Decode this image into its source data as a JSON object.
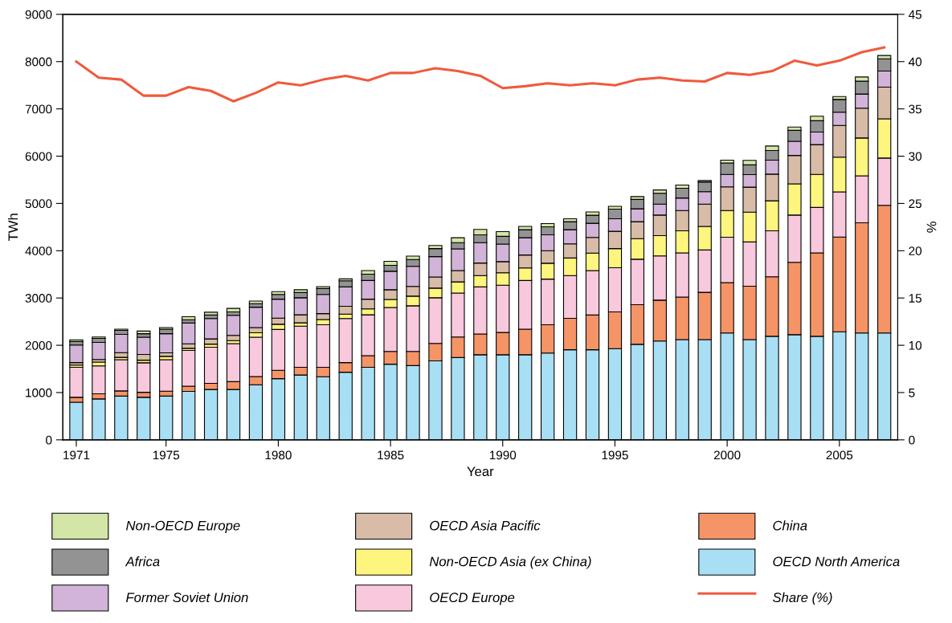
{
  "chart_data": {
    "type": "bar",
    "stacked": true,
    "xlabel": "Year",
    "ylabel": "TWh",
    "y2label": "%",
    "x": [
      1971,
      1972,
      1973,
      1974,
      1975,
      1976,
      1977,
      1978,
      1979,
      1980,
      1981,
      1982,
      1983,
      1984,
      1985,
      1986,
      1987,
      1988,
      1989,
      1990,
      1991,
      1992,
      1993,
      1994,
      1995,
      1996,
      1997,
      1998,
      1999,
      2000,
      2001,
      2002,
      2003,
      2004,
      2005,
      2006,
      2007
    ],
    "xlim": [
      1970.4,
      2007.6
    ],
    "xticks": [
      1971,
      1975,
      1980,
      1985,
      1990,
      1995,
      2000,
      2005
    ],
    "ylim": [
      0,
      9000
    ],
    "yticks": [
      0,
      1000,
      2000,
      3000,
      4000,
      5000,
      6000,
      7000,
      8000,
      9000
    ],
    "y2lim": [
      0,
      45
    ],
    "y2ticks": [
      0,
      5,
      10,
      15,
      20,
      25,
      30,
      35,
      40,
      45
    ],
    "grid": false,
    "legend": "bottom",
    "series": [
      {
        "name": "OECD North America",
        "color": "#a8dff5",
        "values": [
          795,
          865,
          925,
          900,
          925,
          1025,
          1065,
          1065,
          1165,
          1295,
          1370,
          1335,
          1430,
          1535,
          1600,
          1570,
          1670,
          1740,
          1800,
          1800,
          1800,
          1835,
          1905,
          1905,
          1930,
          2020,
          2090,
          2120,
          2120,
          2260,
          2120,
          2190,
          2225,
          2190,
          2285,
          2260,
          2260
        ]
      },
      {
        "name": "China",
        "color": "#f59466",
        "values": [
          105,
          110,
          110,
          105,
          105,
          110,
          130,
          165,
          175,
          175,
          165,
          200,
          205,
          245,
          270,
          300,
          370,
          435,
          440,
          470,
          540,
          600,
          665,
          735,
          775,
          840,
          865,
          900,
          1000,
          1065,
          1130,
          1260,
          1530,
          1765,
          2005,
          2330,
          2700
        ]
      },
      {
        "name": "OECD Europe",
        "color": "#f8c8dd",
        "values": [
          635,
          590,
          660,
          625,
          665,
          755,
          765,
          805,
          830,
          865,
          870,
          900,
          930,
          865,
          930,
          965,
          965,
          930,
          995,
          1000,
          1030,
          965,
          905,
          940,
          935,
          960,
          935,
          935,
          895,
          960,
          935,
          970,
          1000,
          960,
          955,
          995,
          1000
        ]
      },
      {
        "name": "Non-OECD Asia (ex China)",
        "color": "#fef57e",
        "values": [
          45,
          80,
          50,
          55,
          70,
          45,
          65,
          65,
          95,
          110,
          70,
          110,
          95,
          125,
          170,
          205,
          205,
          235,
          240,
          265,
          265,
          335,
          370,
          370,
          405,
          435,
          430,
          465,
          500,
          565,
          630,
          635,
          660,
          700,
          735,
          800,
          830
        ]
      },
      {
        "name": "OECD Asia Pacific",
        "color": "#d8bca8",
        "values": [
          55,
          55,
          100,
          120,
          75,
          95,
          110,
          110,
          110,
          130,
          170,
          125,
          165,
          205,
          205,
          205,
          235,
          240,
          265,
          235,
          275,
          265,
          300,
          330,
          365,
          360,
          435,
          430,
          470,
          500,
          530,
          565,
          600,
          630,
          670,
          630,
          670
        ]
      },
      {
        "name": "Former Soviet Union",
        "color": "#d2b4d8",
        "values": [
          370,
          360,
          385,
          365,
          405,
          440,
          430,
          425,
          430,
          400,
          360,
          405,
          410,
          395,
          390,
          425,
          430,
          460,
          430,
          370,
          365,
          335,
          300,
          300,
          265,
          270,
          230,
          265,
          265,
          265,
          265,
          295,
          300,
          265,
          280,
          300,
          340
        ]
      },
      {
        "name": "Africa",
        "color": "#939393",
        "values": [
          75,
          85,
          85,
          75,
          95,
          70,
          75,
          70,
          75,
          100,
          110,
          125,
          130,
          135,
          125,
          145,
          170,
          130,
          165,
          165,
          170,
          170,
          170,
          170,
          205,
          200,
          230,
          205,
          205,
          240,
          205,
          205,
          230,
          240,
          270,
          270,
          260
        ]
      },
      {
        "name": "Non-OECD Europe",
        "color": "#d3e6a8",
        "values": [
          35,
          30,
          25,
          55,
          35,
          65,
          60,
          75,
          55,
          60,
          60,
          40,
          40,
          75,
          85,
          70,
          65,
          105,
          115,
          100,
          70,
          70,
          60,
          70,
          60,
          60,
          70,
          70,
          30,
          60,
          95,
          95,
          70,
          95,
          60,
          90,
          70
        ]
      },
      {
        "name": "Share (%)",
        "type": "line",
        "axis": "y2",
        "color": "#f05a3c",
        "values": [
          40.0,
          38.3,
          38.1,
          36.4,
          36.4,
          37.3,
          36.9,
          35.8,
          36.7,
          37.8,
          37.5,
          38.1,
          38.5,
          38.0,
          38.8,
          38.8,
          39.3,
          39.0,
          38.5,
          37.2,
          37.4,
          37.7,
          37.5,
          37.7,
          37.5,
          38.1,
          38.3,
          38.0,
          37.9,
          38.8,
          38.6,
          39.0,
          40.1,
          39.6,
          40.1,
          41.0,
          41.5
        ]
      }
    ]
  }
}
